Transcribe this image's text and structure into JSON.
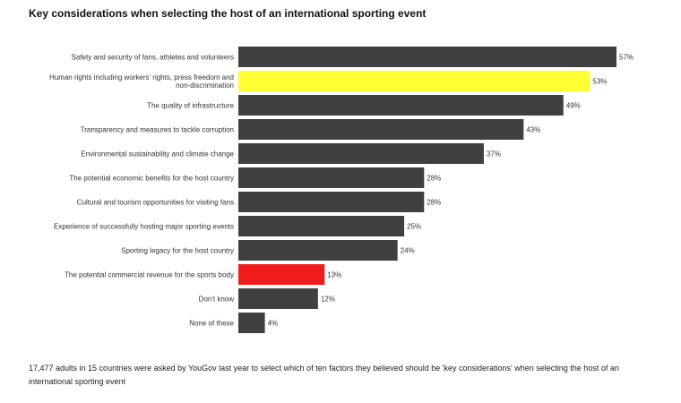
{
  "title": "Key considerations when selecting the host of an international sporting event",
  "footnote": "17,477 adults in 15 countries were asked by YouGov last year to select which of ten factors they believed should be 'key considerations' when selecting the host of an international sporting event",
  "colors": {
    "default_bar": "#404040",
    "highlight_yellow": "#ffff33",
    "highlight_red": "#ee1c1c"
  },
  "chart_data": {
    "type": "bar",
    "orientation": "horizontal",
    "xlim": [
      0,
      57
    ],
    "grid": false,
    "value_suffix": "%",
    "categories": [
      "Safety and security of fans, athletes and volunteers",
      "Human rights including workers' rights, press freedom and non-discrimination",
      "The quality of infrastructure",
      "Transparency and measures to tackle corruption",
      "Environmental sustainability and climate change",
      "The potential economic benefits for the host country",
      "Cultural and tourism opportunities for visiting fans",
      "Experience of successfully hosting major sporting events",
      "Sporting legacy for the host country",
      "The potential commercial revenue for the sports body",
      "Don't know",
      "None of these"
    ],
    "values": [
      57,
      53,
      49,
      43,
      37,
      28,
      28,
      25,
      24,
      13,
      12,
      4
    ],
    "value_labels": [
      "57%",
      "53%",
      "49%",
      "43%",
      "37%",
      "28%",
      "28%",
      "25%",
      "24%",
      "13%",
      "12%",
      "4%"
    ],
    "bar_colors": [
      "default",
      "yellow",
      "default",
      "default",
      "default",
      "default",
      "default",
      "default",
      "default",
      "red",
      "default",
      "default"
    ]
  }
}
